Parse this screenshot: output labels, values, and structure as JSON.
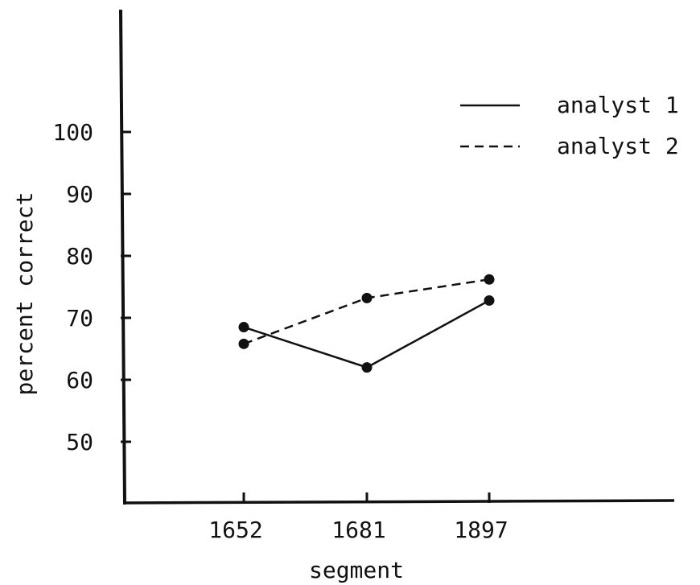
{
  "chart_data": {
    "type": "line",
    "title": "",
    "xlabel": "segment",
    "ylabel": "percent correct",
    "categories": [
      "1652",
      "1681",
      "1897"
    ],
    "y_ticks": [
      50,
      60,
      70,
      80,
      90,
      100
    ],
    "ylim": [
      40,
      100
    ],
    "grid": false,
    "legend_position": "top-right",
    "series": [
      {
        "name": "analyst 1",
        "style": "solid",
        "values": [
          68.5,
          62,
          72.8
        ]
      },
      {
        "name": "analyst 2",
        "style": "dashed",
        "values": [
          65.8,
          73.2,
          76.2
        ]
      }
    ],
    "colors": {
      "ink": "#111111",
      "background": "#ffffff"
    }
  }
}
